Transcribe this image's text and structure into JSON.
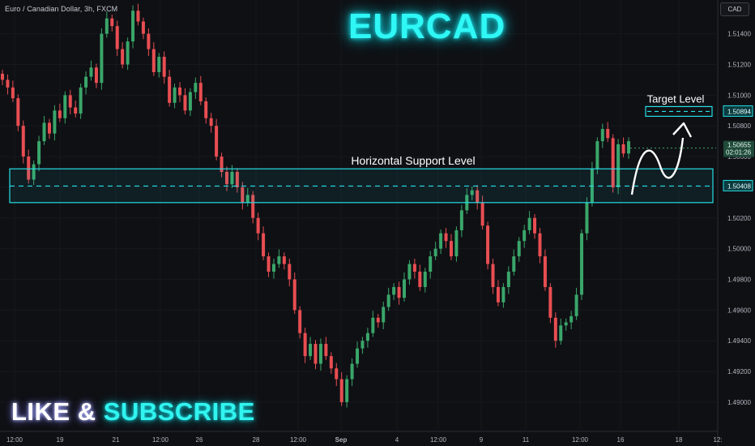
{
  "header": {
    "symbol_info": "Euro / Canadian Dollar, 3h, FXCM",
    "currency": "CAD",
    "title": "EURCAD"
  },
  "cta": {
    "like": "LIKE",
    "amp": "&",
    "subscribe": "SUBSCRIBE"
  },
  "annotations": {
    "support_label": "Horizontal Support Level",
    "target_label": "Target Level"
  },
  "price_axis": {
    "ticks": [
      "1.51400",
      "1.51200",
      "1.51000",
      "1.50800",
      "1.50600",
      "1.50400",
      "1.50200",
      "1.50000",
      "1.49800",
      "1.49600",
      "1.49400",
      "1.49200",
      "1.49000"
    ],
    "current_price": "1.50655",
    "countdown": "02:01:26",
    "support_price": "1.50408",
    "target_price": "1.50894"
  },
  "time_axis": {
    "ticks": [
      "12:00",
      "19",
      "21",
      "12:00",
      "26",
      "28",
      "12:00",
      "Sep",
      "4",
      "12:00",
      "9",
      "11",
      "12:00",
      "16",
      "18",
      "12:"
    ]
  },
  "colors": {
    "background": "#0f1014",
    "up": "#3aa66a",
    "down": "#e84e52",
    "accent": "#26dfe6",
    "label_bg": "#0b3c40"
  },
  "chart_data": {
    "type": "candlestick",
    "ylim": [
      1.4882,
      1.5162
    ],
    "support_zone": [
      1.503,
      1.5052
    ],
    "support_level": 1.50408,
    "target_level": 1.50894,
    "current_price": 1.50655,
    "closes": [
      1.511,
      1.5105,
      1.5098,
      1.508,
      1.506,
      1.5045,
      1.5055,
      1.507,
      1.5082,
      1.5075,
      1.509,
      1.5085,
      1.51,
      1.5092,
      1.5088,
      1.5105,
      1.5112,
      1.5118,
      1.5108,
      1.514,
      1.515,
      1.5145,
      1.513,
      1.512,
      1.5135,
      1.5155,
      1.5148,
      1.514,
      1.513,
      1.5115,
      1.5125,
      1.5112,
      1.5095,
      1.5105,
      1.51,
      1.509,
      1.5102,
      1.5108,
      1.5096,
      1.5085,
      1.508,
      1.506,
      1.505,
      1.5042,
      1.505,
      1.504,
      1.503,
      1.5035,
      1.502,
      1.501,
      1.4995,
      1.4985,
      1.499,
      1.4995,
      1.499,
      1.498,
      1.496,
      1.4945,
      1.493,
      1.4938,
      1.4925,
      1.4938,
      1.493,
      1.4922,
      1.4915,
      1.49,
      1.4915,
      1.4925,
      1.4935,
      1.494,
      1.4945,
      1.4955,
      1.4952,
      1.4962,
      1.497,
      1.4975,
      1.4968,
      1.498,
      1.499,
      1.4985,
      1.4975,
      1.4985,
      1.4995,
      1.5,
      1.501,
      1.5005,
      1.4995,
      1.5012,
      1.5025,
      1.5035,
      1.5038,
      1.503,
      1.5015,
      1.499,
      1.4975,
      1.4965,
      1.4975,
      1.4985,
      1.4995,
      1.5005,
      1.5012,
      1.502,
      1.501,
      1.4995,
      1.4975,
      1.4955,
      1.494,
      1.495,
      1.4952,
      1.4956,
      1.497,
      1.501,
      1.503,
      1.5052,
      1.507,
      1.5078,
      1.5072,
      1.504,
      1.5068,
      1.5062,
      1.507
    ]
  }
}
